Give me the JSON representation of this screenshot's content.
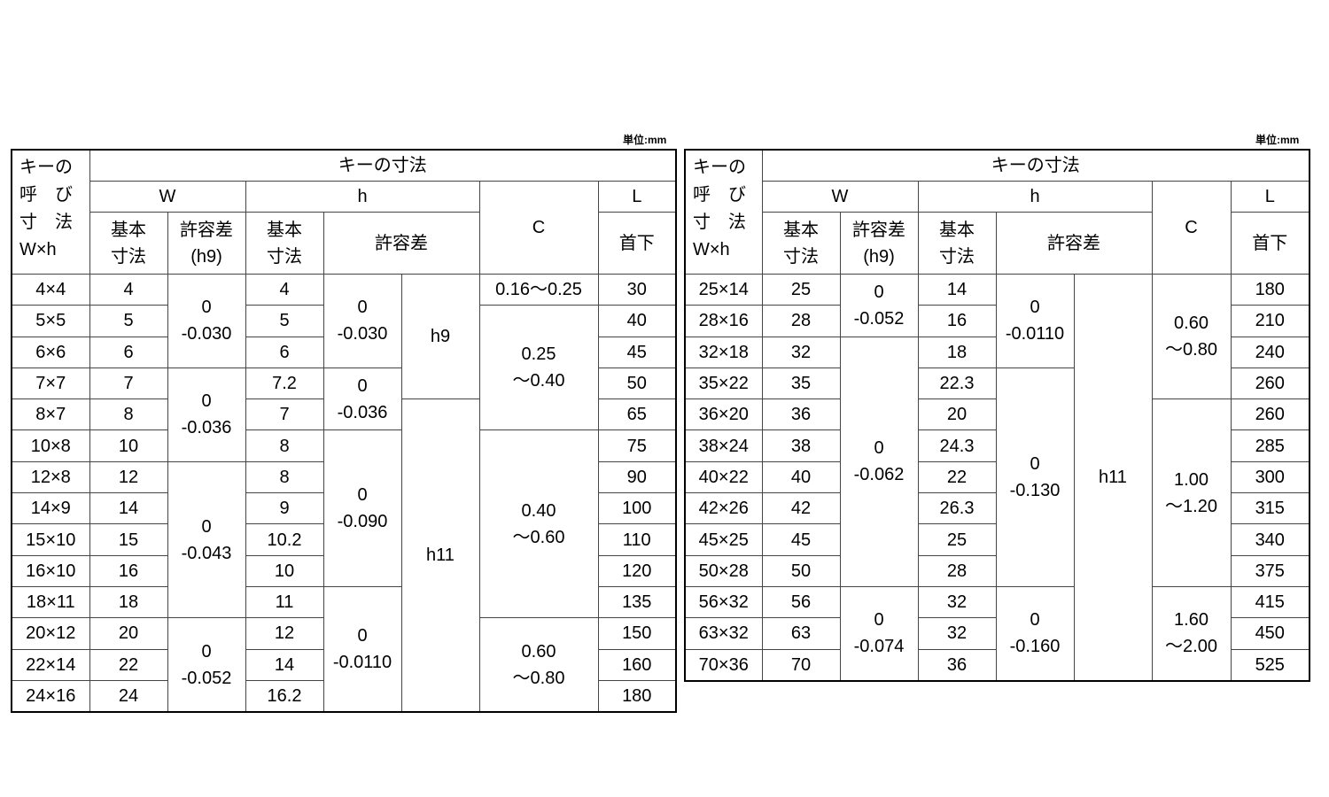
{
  "unit_label": "単位:mm",
  "headers": {
    "nominal": [
      "キーの",
      "呼　び",
      "寸　法",
      "W×h"
    ],
    "key_dimensions": "キーの寸法",
    "W": "W",
    "h": "h",
    "C": "C",
    "L": "L",
    "basic": [
      "基本",
      "寸法"
    ],
    "tolerance_h9": [
      "許容差",
      "(h9)"
    ],
    "tolerance": "許容差",
    "under_head": "首下"
  },
  "tables": [
    {
      "rows": [
        {
          "nominal": "4×4",
          "w": "4",
          "h": "4",
          "l": "30"
        },
        {
          "nominal": "5×5",
          "w": "5",
          "h": "5",
          "l": "40"
        },
        {
          "nominal": "6×6",
          "w": "6",
          "h": "6",
          "l": "45"
        },
        {
          "nominal": "7×7",
          "w": "7",
          "h": "7.2",
          "l": "50"
        },
        {
          "nominal": "8×7",
          "w": "8",
          "h": "7",
          "l": "65"
        },
        {
          "nominal": "10×8",
          "w": "10",
          "h": "8",
          "l": "75"
        },
        {
          "nominal": "12×8",
          "w": "12",
          "h": "8",
          "l": "90"
        },
        {
          "nominal": "14×9",
          "w": "14",
          "h": "9",
          "l": "100"
        },
        {
          "nominal": "15×10",
          "w": "15",
          "h": "10.2",
          "l": "110"
        },
        {
          "nominal": "16×10",
          "w": "16",
          "h": "10",
          "l": "120"
        },
        {
          "nominal": "18×11",
          "w": "18",
          "h": "11",
          "l": "135"
        },
        {
          "nominal": "20×12",
          "w": "20",
          "h": "12",
          "l": "150"
        },
        {
          "nominal": "22×14",
          "w": "22",
          "h": "14",
          "l": "160"
        },
        {
          "nominal": "24×16",
          "w": "24",
          "h": "16.2",
          "l": "180"
        }
      ],
      "w_tolerance": [
        {
          "span": 3,
          "lines": [
            "0",
            "-0.030"
          ]
        },
        {
          "span": 3,
          "lines": [
            "0",
            "-0.036"
          ]
        },
        {
          "span": 5,
          "lines": [
            "0",
            "-0.043"
          ]
        },
        {
          "span": 3,
          "lines": [
            "0",
            "-0.052"
          ]
        }
      ],
      "h_tolerance": [
        {
          "span": 3,
          "lines": [
            "0",
            "-0.030"
          ]
        },
        {
          "span": 2,
          "lines": [
            "0",
            "-0.036"
          ]
        },
        {
          "span": 5,
          "lines": [
            "0",
            "-0.090"
          ]
        },
        {
          "span": 4,
          "lines": [
            "0",
            "-0.0110"
          ]
        }
      ],
      "h_class": [
        {
          "span": 4,
          "lines": [
            "h9"
          ]
        },
        {
          "span": 10,
          "lines": [
            "h11"
          ]
        }
      ],
      "c": [
        {
          "span": 1,
          "lines": [
            "0.16〜0.25"
          ]
        },
        {
          "span": 4,
          "lines": [
            "0.25",
            "〜0.40"
          ]
        },
        {
          "span": 6,
          "lines": [
            "0.40",
            "〜0.60"
          ]
        },
        {
          "span": 3,
          "lines": [
            "0.60",
            "〜0.80"
          ]
        }
      ]
    },
    {
      "rows": [
        {
          "nominal": "25×14",
          "w": "25",
          "h": "14",
          "l": "180"
        },
        {
          "nominal": "28×16",
          "w": "28",
          "h": "16",
          "l": "210"
        },
        {
          "nominal": "32×18",
          "w": "32",
          "h": "18",
          "l": "240"
        },
        {
          "nominal": "35×22",
          "w": "35",
          "h": "22.3",
          "l": "260"
        },
        {
          "nominal": "36×20",
          "w": "36",
          "h": "20",
          "l": "260"
        },
        {
          "nominal": "38×24",
          "w": "38",
          "h": "24.3",
          "l": "285"
        },
        {
          "nominal": "40×22",
          "w": "40",
          "h": "22",
          "l": "300"
        },
        {
          "nominal": "42×26",
          "w": "42",
          "h": "26.3",
          "l": "315"
        },
        {
          "nominal": "45×25",
          "w": "45",
          "h": "25",
          "l": "340"
        },
        {
          "nominal": "50×28",
          "w": "50",
          "h": "28",
          "l": "375"
        },
        {
          "nominal": "56×32",
          "w": "56",
          "h": "32",
          "l": "415"
        },
        {
          "nominal": "63×32",
          "w": "63",
          "h": "32",
          "l": "450"
        },
        {
          "nominal": "70×36",
          "w": "70",
          "h": "36",
          "l": "525"
        }
      ],
      "w_tolerance": [
        {
          "span": 2,
          "lines": [
            "0",
            "-0.052"
          ]
        },
        {
          "span": 8,
          "lines": [
            "0",
            "-0.062"
          ]
        },
        {
          "span": 3,
          "lines": [
            "0",
            "-0.074"
          ]
        }
      ],
      "h_tolerance": [
        {
          "span": 3,
          "lines": [
            "0",
            "-0.0110"
          ]
        },
        {
          "span": 7,
          "lines": [
            "0",
            "-0.130"
          ]
        },
        {
          "span": 3,
          "lines": [
            "0",
            "-0.160"
          ]
        }
      ],
      "h_class": [
        {
          "span": 13,
          "lines": [
            "h11"
          ]
        }
      ],
      "c": [
        {
          "span": 4,
          "lines": [
            "0.60",
            "〜0.80"
          ]
        },
        {
          "span": 6,
          "lines": [
            "1.00",
            "〜1.20"
          ]
        },
        {
          "span": 3,
          "lines": [
            "1.60",
            "〜2.00"
          ]
        }
      ]
    }
  ]
}
